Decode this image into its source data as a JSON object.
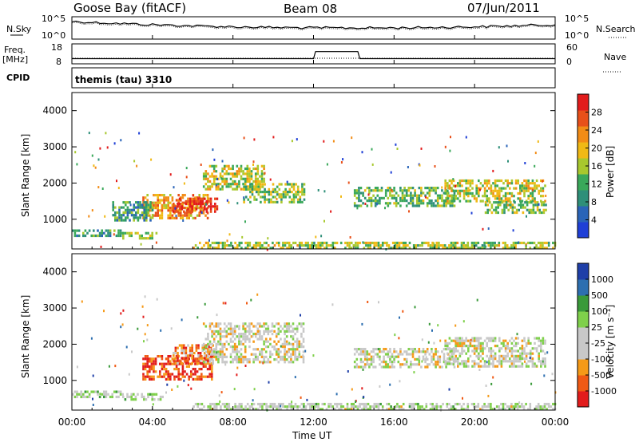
{
  "header": {
    "station": "Goose Bay (fitACF)",
    "beam": "Beam 08",
    "date": "07/Jun/2011"
  },
  "top_panels": {
    "nsky_label": "N.Sky",
    "nsearch_label": "N.Search",
    "noise_ticks": [
      "10^5",
      "10^0"
    ],
    "freq_label": "Freq.",
    "freq_unit": "[MHz]",
    "freq_ticks": [
      "18",
      "8"
    ],
    "nave_label": "Nave",
    "nave_ticks": [
      "60",
      "0"
    ],
    "cpid_label": "CPID",
    "cpid_text": "themis (tau) 3310",
    "freq_mhz": {
      "x": [
        0,
        12.0,
        12.1,
        14.2,
        14.3,
        24
      ],
      "y": [
        10.5,
        10.5,
        14.5,
        14.5,
        10.5,
        10.5
      ]
    }
  },
  "chart_data": [
    {
      "type": "heatmap",
      "name": "power",
      "ylabel": "Slant Range [km]",
      "yticks": [
        "4000",
        "3000",
        "2000",
        "1000"
      ],
      "ylim": [
        180,
        4500
      ],
      "xlim": [
        0,
        24
      ],
      "colorbar_label": "Power [dB]",
      "colorbar_ticks": [
        "28",
        "24",
        "20",
        "16",
        "12",
        "8",
        "4"
      ],
      "colorbar_range": [
        0,
        30
      ],
      "colors": [
        "#1f3fd6",
        "#2a64b8",
        "#2e8f79",
        "#3aa85a",
        "#a8c82e",
        "#f0b915",
        "#f28c16",
        "#e8501a",
        "#e21c1c"
      ],
      "regions": [
        {
          "t0": 0.0,
          "t1": 2.5,
          "r0": 520,
          "r1": 720,
          "level": 0.3
        },
        {
          "t0": 2.5,
          "t1": 4.2,
          "r0": 500,
          "r1": 650,
          "level": 0.45
        },
        {
          "t0": 3.5,
          "t1": 6.8,
          "r0": 1050,
          "r1": 1700,
          "level": 0.7
        },
        {
          "t0": 5.0,
          "t1": 7.2,
          "r0": 1200,
          "r1": 1600,
          "level": 0.9
        },
        {
          "t0": 6.5,
          "t1": 9.5,
          "r0": 1800,
          "r1": 2500,
          "level": 0.55
        },
        {
          "t0": 8.5,
          "t1": 11.5,
          "r0": 1500,
          "r1": 2000,
          "level": 0.45
        },
        {
          "t0": 2.0,
          "t1": 4.0,
          "r0": 1000,
          "r1": 1500,
          "level": 0.35
        },
        {
          "t0": 6.0,
          "t1": 24.0,
          "r0": 220,
          "r1": 380,
          "level": 0.5
        },
        {
          "t0": 14.0,
          "t1": 19.0,
          "r0": 1400,
          "r1": 1900,
          "level": 0.4
        },
        {
          "t0": 18.5,
          "t1": 23.5,
          "r0": 1500,
          "r1": 2100,
          "level": 0.55
        },
        {
          "t0": 20.5,
          "t1": 23.5,
          "r0": 1200,
          "r1": 1500,
          "level": 0.45
        }
      ]
    },
    {
      "type": "heatmap",
      "name": "velocity",
      "ylabel": "Slant Range [km]",
      "yticks": [
        "4000",
        "3000",
        "2000",
        "1000"
      ],
      "ylim": [
        180,
        4500
      ],
      "xlim": [
        0,
        24
      ],
      "xlabel": "Time UT",
      "xticks": [
        "00:00",
        "04:00",
        "08:00",
        "12:00",
        "16:00",
        "20:00",
        "00:00"
      ],
      "colorbar_label": "Velocity [m s⁻¹]",
      "colorbar_ticks": [
        "1000",
        "500",
        "100",
        "25",
        "-25",
        "-100",
        "-500",
        "-1000"
      ],
      "colors": [
        "#e21c1c",
        "#f05a14",
        "#f59a18",
        "#c8c8c8",
        "#c8c8c8",
        "#7fd04b",
        "#3a9a3a",
        "#2d6fb0",
        "#1f3fa8"
      ],
      "regions": [
        {
          "t0": 0.0,
          "t1": 2.5,
          "r0": 520,
          "r1": 720,
          "level": 0.55
        },
        {
          "t0": 2.5,
          "t1": 4.5,
          "r0": 480,
          "r1": 650,
          "level": 0.5
        },
        {
          "t0": 3.5,
          "t1": 7.0,
          "r0": 1050,
          "r1": 1700,
          "level": 0.15
        },
        {
          "t0": 5.0,
          "t1": 7.0,
          "r0": 1500,
          "r1": 2000,
          "level": 0.2
        },
        {
          "t0": 6.5,
          "t1": 11.5,
          "r0": 1500,
          "r1": 2600,
          "level": 0.45
        },
        {
          "t0": 6.0,
          "t1": 24.0,
          "r0": 220,
          "r1": 380,
          "level": 0.5
        },
        {
          "t0": 14.0,
          "t1": 19.0,
          "r0": 1400,
          "r1": 1900,
          "level": 0.45
        },
        {
          "t0": 18.5,
          "t1": 23.5,
          "r0": 1400,
          "r1": 2200,
          "level": 0.45
        }
      ]
    }
  ]
}
